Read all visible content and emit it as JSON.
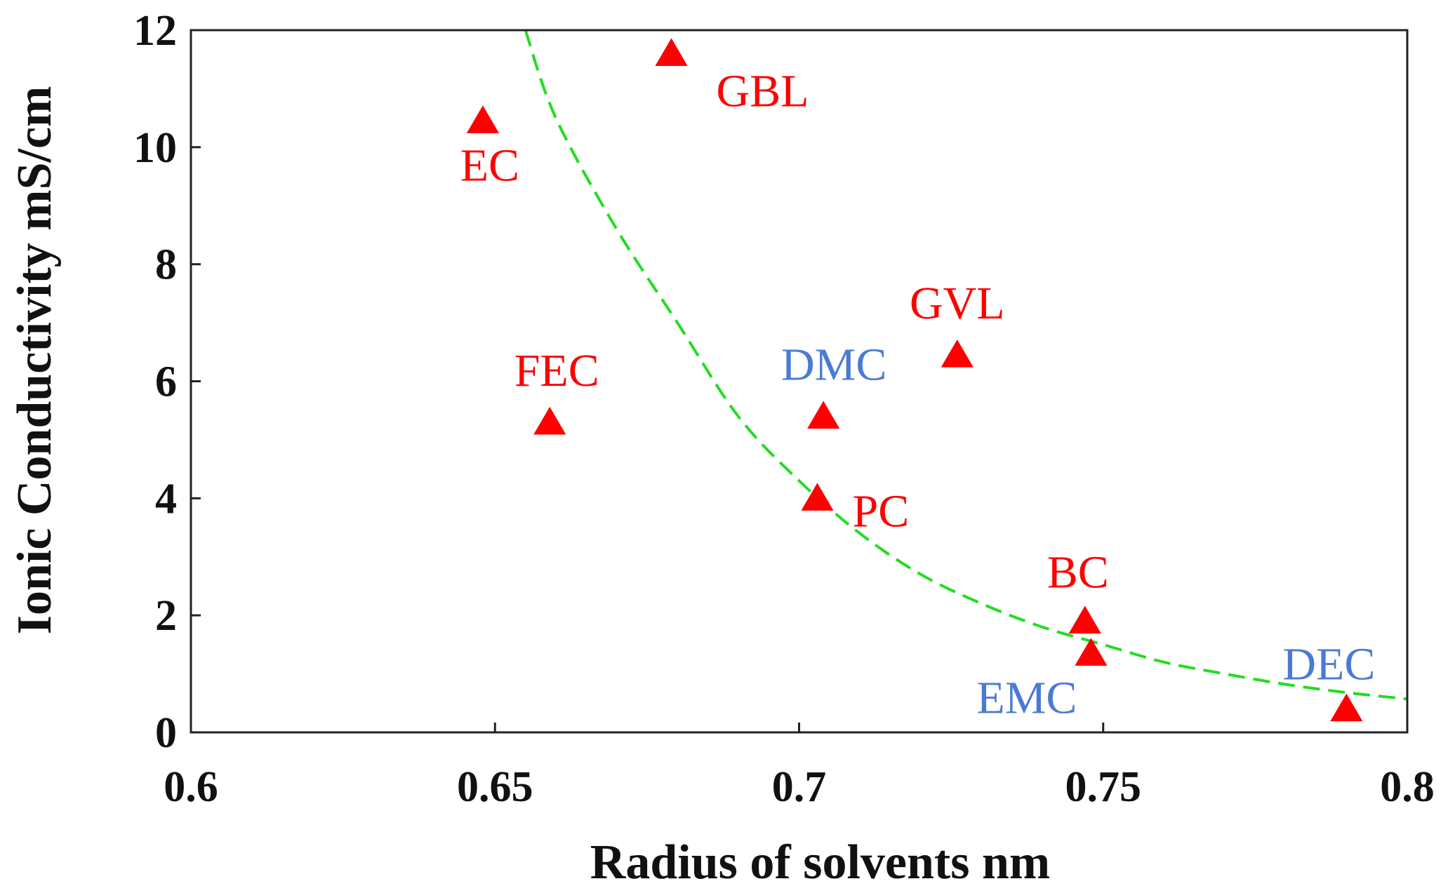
{
  "chart_data": {
    "type": "scatter",
    "title": "",
    "xlabel": "Radius of solvents  nm",
    "ylabel": "Ionic Conductivity  mS/cm",
    "xlim": [
      0.6,
      0.8
    ],
    "ylim": [
      0,
      12
    ],
    "xticks": [
      0.6,
      0.65,
      0.7,
      0.75,
      0.8
    ],
    "xtick_labels": [
      "0.6",
      "0.65",
      "0.7",
      "0.75",
      "0.8"
    ],
    "yticks": [
      0,
      2,
      4,
      6,
      8,
      10,
      12
    ],
    "ytick_labels": [
      "0",
      "2",
      "4",
      "6",
      "8",
      "10",
      "12"
    ],
    "grid": false,
    "marker_color": "#ff0000",
    "fit_color": "#22dd22",
    "fit": {
      "style": "dashed",
      "description": "decaying fit curve",
      "x": [
        0.655,
        0.66,
        0.67,
        0.68,
        0.69,
        0.7,
        0.71,
        0.72,
        0.73,
        0.74,
        0.75,
        0.76,
        0.77,
        0.78,
        0.79,
        0.8
      ],
      "y": [
        12.0,
        10.5,
        8.6,
        7.0,
        5.4,
        4.3,
        3.4,
        2.7,
        2.2,
        1.8,
        1.5,
        1.2,
        1.0,
        0.82,
        0.68,
        0.57
      ]
    },
    "points": [
      {
        "label": "GBL",
        "x": 0.679,
        "y": 11.6,
        "label_color": "#ff0000"
      },
      {
        "label": "EC",
        "x": 0.648,
        "y": 10.45,
        "label_color": "#ff0000"
      },
      {
        "label": "GVL",
        "x": 0.726,
        "y": 6.45,
        "label_color": "#ff0000"
      },
      {
        "label": "FEC",
        "x": 0.659,
        "y": 5.3,
        "label_color": "#ff0000"
      },
      {
        "label": "DMC",
        "x": 0.704,
        "y": 5.4,
        "label_color": "#4a7bd4"
      },
      {
        "label": "PC",
        "x": 0.703,
        "y": 4.0,
        "label_color": "#ff0000"
      },
      {
        "label": "BC",
        "x": 0.747,
        "y": 1.9,
        "label_color": "#ff0000"
      },
      {
        "label": "EMC",
        "x": 0.748,
        "y": 1.35,
        "label_color": "#4a7bd4"
      },
      {
        "label": "DEC",
        "x": 0.79,
        "y": 0.4,
        "label_color": "#4a7bd4"
      }
    ]
  }
}
